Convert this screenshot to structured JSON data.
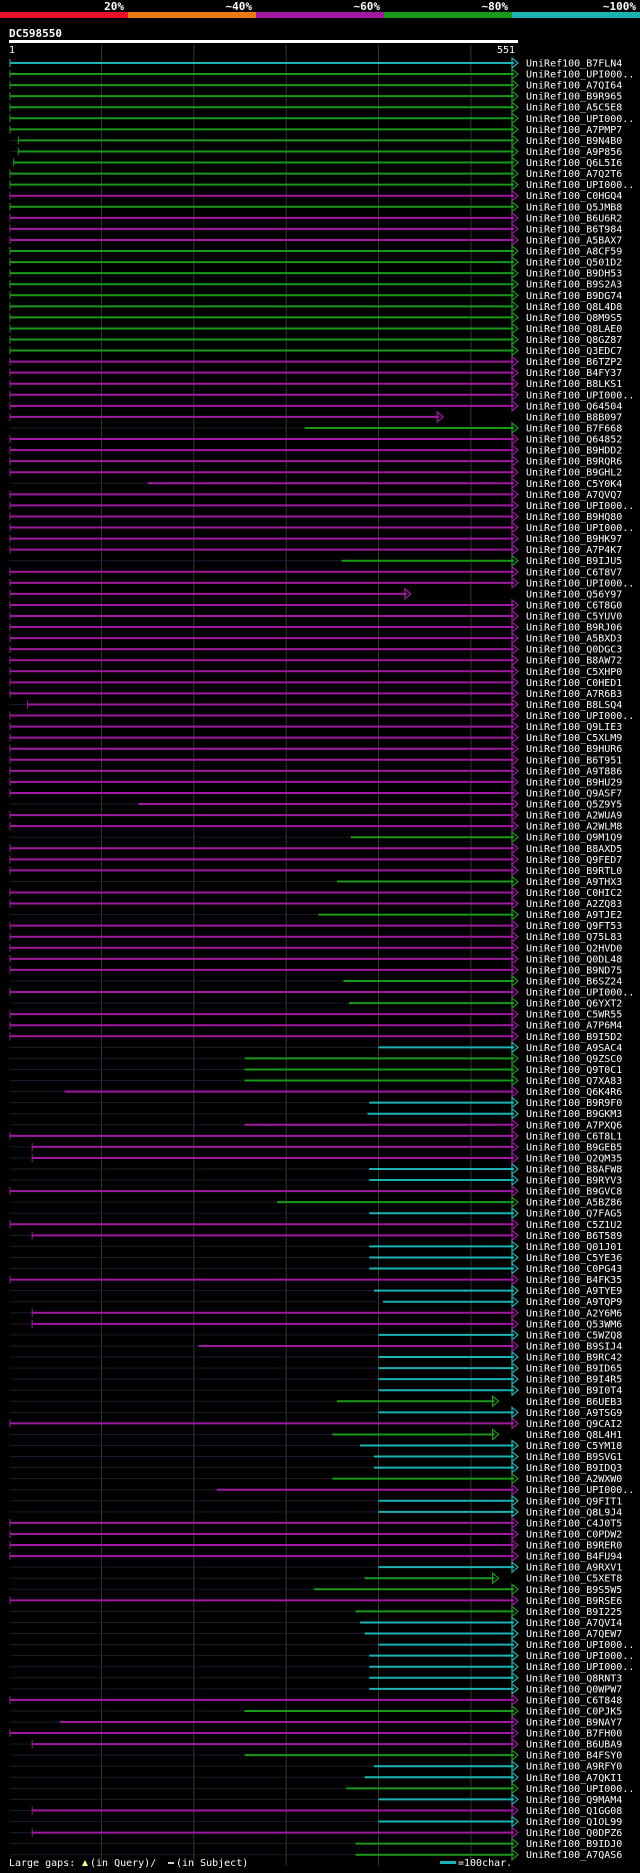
{
  "legend": {
    "labels": [
      "20%",
      "~40%",
      "~60%",
      "~80%",
      "~100%"
    ],
    "colors": [
      "#e8102a",
      "#e87a10",
      "#a01aa0",
      "#1a9a1a",
      "#1ab4b4"
    ]
  },
  "query": {
    "name": "DC598550",
    "start": "1",
    "end": "551",
    "length": 551
  },
  "colors": {
    "cyan": "#1ab4b4",
    "green": "#1a9a1a",
    "purple": "#a01aa0",
    "gap_marker": "#ffff80"
  },
  "hits": [
    {
      "id": "UniRef100_B7FLN4",
      "color": "cyan",
      "start": 1,
      "end": 551
    },
    {
      "id": "UniRef100_UPI000..",
      "color": "green",
      "start": 1,
      "end": 551
    },
    {
      "id": "UniRef100_A7QI64",
      "color": "green",
      "start": 1,
      "end": 551
    },
    {
      "id": "UniRef100_B9R965",
      "color": "green",
      "start": 1,
      "end": 551
    },
    {
      "id": "UniRef100_A5C5E8",
      "color": "green",
      "start": 1,
      "end": 551
    },
    {
      "id": "UniRef100_UPI000..",
      "color": "green",
      "start": 1,
      "end": 551
    },
    {
      "id": "UniRef100_A7PMP7",
      "color": "green",
      "start": 1,
      "end": 551
    },
    {
      "id": "UniRef100_B9N4B0",
      "color": "green",
      "start": 10,
      "end": 551
    },
    {
      "id": "UniRef100_A9P856",
      "color": "green",
      "start": 10,
      "end": 551
    },
    {
      "id": "UniRef100_Q6L5I6",
      "color": "green",
      "start": 5,
      "end": 551
    },
    {
      "id": "UniRef100_A7Q2T6",
      "color": "green",
      "start": 1,
      "end": 551
    },
    {
      "id": "UniRef100_UPI000..",
      "color": "green",
      "start": 1,
      "end": 551
    },
    {
      "id": "UniRef100_C0HGQ4",
      "color": "purple",
      "start": 1,
      "end": 551
    },
    {
      "id": "UniRef100_Q5JMB8",
      "color": "green",
      "start": 1,
      "end": 551
    },
    {
      "id": "UniRef100_B6U6R2",
      "color": "purple",
      "start": 1,
      "end": 551
    },
    {
      "id": "UniRef100_B6T984",
      "color": "purple",
      "start": 1,
      "end": 551
    },
    {
      "id": "UniRef100_A5BAX7",
      "color": "purple",
      "start": 1,
      "end": 551
    },
    {
      "id": "UniRef100_A8CF59",
      "color": "green",
      "start": 1,
      "end": 551
    },
    {
      "id": "UniRef100_Q501D2",
      "color": "green",
      "start": 1,
      "end": 551
    },
    {
      "id": "UniRef100_B9DH53",
      "color": "green",
      "start": 1,
      "end": 551
    },
    {
      "id": "UniRef100_B9S2A3",
      "color": "green",
      "start": 1,
      "end": 551
    },
    {
      "id": "UniRef100_B9DG74",
      "color": "green",
      "start": 1,
      "end": 551
    },
    {
      "id": "UniRef100_Q8L4D8",
      "color": "green",
      "start": 1,
      "end": 551
    },
    {
      "id": "UniRef100_Q8M9S5",
      "color": "green",
      "start": 1,
      "end": 551
    },
    {
      "id": "UniRef100_Q8LAE0",
      "color": "green",
      "start": 1,
      "end": 551
    },
    {
      "id": "UniRef100_Q8GZ87",
      "color": "green",
      "start": 1,
      "end": 551
    },
    {
      "id": "UniRef100_Q3EDC7",
      "color": "green",
      "start": 1,
      "end": 551
    },
    {
      "id": "UniRef100_B6TZP2",
      "color": "purple",
      "start": 1,
      "end": 551
    },
    {
      "id": "UniRef100_B4FY37",
      "color": "purple",
      "start": 1,
      "end": 551
    },
    {
      "id": "UniRef100_B8LKS1",
      "color": "purple",
      "start": 1,
      "end": 551
    },
    {
      "id": "UniRef100_UPI000..",
      "color": "purple",
      "start": 1,
      "end": 551
    },
    {
      "id": "UniRef100_Q64504",
      "color": "purple",
      "start": 1,
      "end": 551
    },
    {
      "id": "UniRef100_B8B097",
      "color": "purple",
      "start": 1,
      "end": 470
    },
    {
      "id": "UniRef100_B7F668",
      "color": "green",
      "start": 320,
      "end": 551
    },
    {
      "id": "UniRef100_Q64852",
      "color": "purple",
      "start": 1,
      "end": 551
    },
    {
      "id": "UniRef100_B9HDD2",
      "color": "purple",
      "start": 1,
      "end": 551
    },
    {
      "id": "UniRef100_B9RQR6",
      "color": "purple",
      "start": 1,
      "end": 551
    },
    {
      "id": "UniRef100_B9GHL2",
      "color": "purple",
      "start": 1,
      "end": 551
    },
    {
      "id": "UniRef100_C5Y0K4",
      "color": "purple",
      "start": 150,
      "end": 551
    },
    {
      "id": "UniRef100_A7QVQ7",
      "color": "purple",
      "start": 1,
      "end": 551
    },
    {
      "id": "UniRef100_UPI000..",
      "color": "purple",
      "start": 1,
      "end": 551
    },
    {
      "id": "UniRef100_B9HQ80",
      "color": "purple",
      "start": 1,
      "end": 551
    },
    {
      "id": "UniRef100_UPI000..",
      "color": "purple",
      "start": 1,
      "end": 551
    },
    {
      "id": "UniRef100_B9HK97",
      "color": "purple",
      "start": 1,
      "end": 551
    },
    {
      "id": "UniRef100_A7P4K7",
      "color": "purple",
      "start": 1,
      "end": 551
    },
    {
      "id": "UniRef100_B9IJU5",
      "color": "green",
      "start": 360,
      "end": 551
    },
    {
      "id": "UniRef100_C6T8V7",
      "color": "purple",
      "start": 1,
      "end": 551
    },
    {
      "id": "UniRef100_UPI000..",
      "color": "purple",
      "start": 1,
      "end": 551
    },
    {
      "id": "UniRef100_Q56Y97",
      "color": "purple",
      "start": 1,
      "end": 435
    },
    {
      "id": "UniRef100_C6T8G0",
      "color": "purple",
      "start": 1,
      "end": 551
    },
    {
      "id": "UniRef100_C5YUV0",
      "color": "purple",
      "start": 1,
      "end": 551
    },
    {
      "id": "UniRef100_B9RJ06",
      "color": "purple",
      "start": 1,
      "end": 551
    },
    {
      "id": "UniRef100_A5BXD3",
      "color": "purple",
      "start": 1,
      "end": 551
    },
    {
      "id": "UniRef100_Q0DGC3",
      "color": "purple",
      "start": 1,
      "end": 551
    },
    {
      "id": "UniRef100_B8AW72",
      "color": "purple",
      "start": 1,
      "end": 551
    },
    {
      "id": "UniRef100_C5XHP0",
      "color": "purple",
      "start": 1,
      "end": 551
    },
    {
      "id": "UniRef100_C0HED1",
      "color": "purple",
      "start": 1,
      "end": 551
    },
    {
      "id": "UniRef100_A7R6B3",
      "color": "purple",
      "start": 1,
      "end": 551
    },
    {
      "id": "UniRef100_B8LSQ4",
      "color": "purple",
      "start": 20,
      "end": 551
    },
    {
      "id": "UniRef100_UPI000..",
      "color": "purple",
      "start": 1,
      "end": 551
    },
    {
      "id": "UniRef100_Q9LIE3",
      "color": "purple",
      "start": 1,
      "end": 551
    },
    {
      "id": "UniRef100_C5XLM9",
      "color": "purple",
      "start": 1,
      "end": 551
    },
    {
      "id": "UniRef100_B9HUR6",
      "color": "purple",
      "start": 1,
      "end": 551
    },
    {
      "id": "UniRef100_B6T951",
      "color": "purple",
      "start": 1,
      "end": 551
    },
    {
      "id": "UniRef100_A9T886",
      "color": "purple",
      "start": 1,
      "end": 551
    },
    {
      "id": "UniRef100_B9HU29",
      "color": "purple",
      "start": 1,
      "end": 551
    },
    {
      "id": "UniRef100_Q9ASF7",
      "color": "purple",
      "start": 1,
      "end": 551
    },
    {
      "id": "UniRef100_Q5Z9Y5",
      "color": "purple",
      "start": 140,
      "end": 551
    },
    {
      "id": "UniRef100_A2WUA9",
      "color": "purple",
      "start": 1,
      "end": 551
    },
    {
      "id": "UniRef100_A2WLM8",
      "color": "purple",
      "start": 1,
      "end": 551
    },
    {
      "id": "UniRef100_Q9M1Q9",
      "color": "green",
      "start": 370,
      "end": 551
    },
    {
      "id": "UniRef100_B8AXD5",
      "color": "purple",
      "start": 1,
      "end": 551
    },
    {
      "id": "UniRef100_Q9FED7",
      "color": "purple",
      "start": 1,
      "end": 551
    },
    {
      "id": "UniRef100_B9RTL0",
      "color": "purple",
      "start": 1,
      "end": 551
    },
    {
      "id": "UniRef100_A9THX3",
      "color": "green",
      "start": 355,
      "end": 551
    },
    {
      "id": "UniRef100_C0HIC2",
      "color": "purple",
      "start": 1,
      "end": 551
    },
    {
      "id": "UniRef100_A2ZQ83",
      "color": "purple",
      "start": 1,
      "end": 551
    },
    {
      "id": "UniRef100_A9TJE2",
      "color": "green",
      "start": 335,
      "end": 551
    },
    {
      "id": "UniRef100_Q9FT53",
      "color": "purple",
      "start": 1,
      "end": 551
    },
    {
      "id": "UniRef100_Q75L83",
      "color": "purple",
      "start": 1,
      "end": 551
    },
    {
      "id": "UniRef100_Q2HVD0",
      "color": "purple",
      "start": 1,
      "end": 551
    },
    {
      "id": "UniRef100_Q0DL48",
      "color": "purple",
      "start": 1,
      "end": 551
    },
    {
      "id": "UniRef100_B9ND75",
      "color": "purple",
      "start": 1,
      "end": 551
    },
    {
      "id": "UniRef100_B6SZ24",
      "color": "green",
      "start": 362,
      "end": 551
    },
    {
      "id": "UniRef100_UPI000..",
      "color": "purple",
      "start": 1,
      "end": 551
    },
    {
      "id": "UniRef100_Q6YXT2",
      "color": "green",
      "start": 368,
      "end": 551
    },
    {
      "id": "UniRef100_C5WR55",
      "color": "purple",
      "start": 1,
      "end": 551
    },
    {
      "id": "UniRef100_A7P6M4",
      "color": "purple",
      "start": 1,
      "end": 551
    },
    {
      "id": "UniRef100_B9I5D2",
      "color": "purple",
      "start": 1,
      "end": 551
    },
    {
      "id": "UniRef100_A9SAC4",
      "color": "cyan",
      "start": 400,
      "end": 551
    },
    {
      "id": "UniRef100_Q9ZSC0",
      "color": "green",
      "start": 255,
      "end": 551
    },
    {
      "id": "UniRef100_Q9T0C1",
      "color": "green",
      "start": 255,
      "end": 551
    },
    {
      "id": "UniRef100_Q7XA83",
      "color": "green",
      "start": 255,
      "end": 551
    },
    {
      "id": "UniRef100_Q6K4R6",
      "color": "purple",
      "start": 60,
      "end": 551
    },
    {
      "id": "UniRef100_B9R9F0",
      "color": "cyan",
      "start": 390,
      "end": 551
    },
    {
      "id": "UniRef100_B9GKM3",
      "color": "cyan",
      "start": 388,
      "end": 551
    },
    {
      "id": "UniRef100_A7PXQ6",
      "color": "purple",
      "start": 255,
      "end": 551
    },
    {
      "id": "UniRef100_C6T8L1",
      "color": "purple",
      "start": 1,
      "end": 551
    },
    {
      "id": "UniRef100_B9GEB5",
      "color": "purple",
      "start": 25,
      "end": 551
    },
    {
      "id": "UniRef100_Q2QM35",
      "color": "purple",
      "start": 25,
      "end": 551
    },
    {
      "id": "UniRef100_B8AFW8",
      "color": "cyan",
      "start": 390,
      "end": 551
    },
    {
      "id": "UniRef100_B9RYV3",
      "color": "cyan",
      "start": 390,
      "end": 551
    },
    {
      "id": "UniRef100_B9GVC8",
      "color": "purple",
      "start": 1,
      "end": 551
    },
    {
      "id": "UniRef100_A5BZ86",
      "color": "green",
      "start": 290,
      "end": 551
    },
    {
      "id": "UniRef100_Q7FAG5",
      "color": "cyan",
      "start": 390,
      "end": 551
    },
    {
      "id": "UniRef100_C5Z1U2",
      "color": "purple",
      "start": 1,
      "end": 551
    },
    {
      "id": "UniRef100_B6T589",
      "color": "purple",
      "start": 25,
      "end": 551
    },
    {
      "id": "UniRef100_Q01J01",
      "color": "cyan",
      "start": 390,
      "end": 551
    },
    {
      "id": "UniRef100_C5YE36",
      "color": "cyan",
      "start": 390,
      "end": 551
    },
    {
      "id": "UniRef100_C0PG43",
      "color": "cyan",
      "start": 390,
      "end": 551
    },
    {
      "id": "UniRef100_B4FK35",
      "color": "purple",
      "start": 1,
      "end": 551
    },
    {
      "id": "UniRef100_A9TYE9",
      "color": "cyan",
      "start": 395,
      "end": 551
    },
    {
      "id": "UniRef100_A9TQP9",
      "color": "cyan",
      "start": 405,
      "end": 551
    },
    {
      "id": "UniRef100_A2Y6M6",
      "color": "purple",
      "start": 25,
      "end": 551
    },
    {
      "id": "UniRef100_Q53WM6",
      "color": "purple",
      "start": 25,
      "end": 551
    },
    {
      "id": "UniRef100_C5WZQ8",
      "color": "cyan",
      "start": 400,
      "end": 551
    },
    {
      "id": "UniRef100_B9SIJ4",
      "color": "purple",
      "start": 205,
      "end": 551
    },
    {
      "id": "UniRef100_B9RC42",
      "color": "cyan",
      "start": 400,
      "end": 551
    },
    {
      "id": "UniRef100_B9ID65",
      "color": "cyan",
      "start": 400,
      "end": 551
    },
    {
      "id": "UniRef100_B9I4R5",
      "color": "cyan",
      "start": 400,
      "end": 551
    },
    {
      "id": "UniRef100_B9I0T4",
      "color": "cyan",
      "start": 400,
      "end": 551
    },
    {
      "id": "UniRef100_B6UEB3",
      "color": "green",
      "start": 355,
      "end": 530
    },
    {
      "id": "UniRef100_A9TSG9",
      "color": "cyan",
      "start": 400,
      "end": 551
    },
    {
      "id": "UniRef100_Q9CAI2",
      "color": "purple",
      "start": 1,
      "end": 551
    },
    {
      "id": "UniRef100_Q8L4H1",
      "color": "green",
      "start": 350,
      "end": 530
    },
    {
      "id": "UniRef100_C5YM18",
      "color": "cyan",
      "start": 380,
      "end": 551
    },
    {
      "id": "UniRef100_B9SVG1",
      "color": "cyan",
      "start": 395,
      "end": 551
    },
    {
      "id": "UniRef100_B9IDQ3",
      "color": "cyan",
      "start": 395,
      "end": 551
    },
    {
      "id": "UniRef100_A2WXW0",
      "color": "green",
      "start": 350,
      "end": 551
    },
    {
      "id": "UniRef100_UPI000..",
      "color": "purple",
      "start": 225,
      "end": 551
    },
    {
      "id": "UniRef100_Q9FIT1",
      "color": "cyan",
      "start": 400,
      "end": 551
    },
    {
      "id": "UniRef100_Q8L9J4",
      "color": "cyan",
      "start": 400,
      "end": 551
    },
    {
      "id": "UniRef100_C4J0T5",
      "color": "purple",
      "start": 1,
      "end": 551
    },
    {
      "id": "UniRef100_C0PDW2",
      "color": "purple",
      "start": 1,
      "end": 551
    },
    {
      "id": "UniRef100_B9RER0",
      "color": "purple",
      "start": 1,
      "end": 551
    },
    {
      "id": "UniRef100_B4FU94",
      "color": "purple",
      "start": 1,
      "end": 551
    },
    {
      "id": "UniRef100_A9RXV1",
      "color": "cyan",
      "start": 400,
      "end": 551
    },
    {
      "id": "UniRef100_C5XET8",
      "color": "green",
      "start": 385,
      "end": 530
    },
    {
      "id": "UniRef100_B9S5W5",
      "color": "green",
      "start": 330,
      "end": 551
    },
    {
      "id": "UniRef100_B9RSE6",
      "color": "purple",
      "start": 1,
      "end": 551
    },
    {
      "id": "UniRef100_B9I225",
      "color": "green",
      "start": 375,
      "end": 551
    },
    {
      "id": "UniRef100_A7QVI4",
      "color": "cyan",
      "start": 380,
      "end": 551
    },
    {
      "id": "UniRef100_A7QEW7",
      "color": "cyan",
      "start": 385,
      "end": 551
    },
    {
      "id": "UniRef100_UPI000..",
      "color": "cyan",
      "start": 400,
      "end": 551
    },
    {
      "id": "UniRef100_UPI000..",
      "color": "cyan",
      "start": 390,
      "end": 551
    },
    {
      "id": "UniRef100_UPI000..",
      "color": "cyan",
      "start": 390,
      "end": 551
    },
    {
      "id": "UniRef100_Q8RNT3",
      "color": "cyan",
      "start": 390,
      "end": 551
    },
    {
      "id": "UniRef100_Q0WPW7",
      "color": "cyan",
      "start": 390,
      "end": 551
    },
    {
      "id": "UniRef100_C6T848",
      "color": "purple",
      "start": 1,
      "end": 551
    },
    {
      "id": "UniRef100_C0PJK5",
      "color": "green",
      "start": 255,
      "end": 551
    },
    {
      "id": "UniRef100_B9NAY7",
      "color": "purple",
      "start": 55,
      "end": 551
    },
    {
      "id": "UniRef100_B7FH00",
      "color": "purple",
      "start": 1,
      "end": 551
    },
    {
      "id": "UniRef100_B6UBA9",
      "color": "purple",
      "start": 25,
      "end": 551
    },
    {
      "id": "UniRef100_B4FSY0",
      "color": "green",
      "start": 255,
      "end": 551
    },
    {
      "id": "UniRef100_A9RFY0",
      "color": "cyan",
      "start": 395,
      "end": 551
    },
    {
      "id": "UniRef100_A7QKI1",
      "color": "cyan",
      "start": 385,
      "end": 551
    },
    {
      "id": "UniRef100_UPI000..",
      "color": "green",
      "start": 365,
      "end": 551
    },
    {
      "id": "UniRef100_Q9MAM4",
      "color": "cyan",
      "start": 400,
      "end": 551
    },
    {
      "id": "UniRef100_Q1GG08",
      "color": "purple",
      "start": 25,
      "end": 551
    },
    {
      "id": "UniRef100_Q1OL99",
      "color": "cyan",
      "start": 400,
      "end": 551
    },
    {
      "id": "UniRef100_Q0DPZ6",
      "color": "purple",
      "start": 25,
      "end": 551
    },
    {
      "id": "UniRef100_B9IDJ0",
      "color": "green",
      "start": 375,
      "end": 551
    },
    {
      "id": "UniRef100_A7QAS6",
      "color": "green",
      "start": 375,
      "end": 551
    }
  ],
  "footer": {
    "large_gaps": "Large gaps:",
    "in_query": "(in Query)/",
    "in_subject": "(in Subject)",
    "scale": "=100char."
  }
}
